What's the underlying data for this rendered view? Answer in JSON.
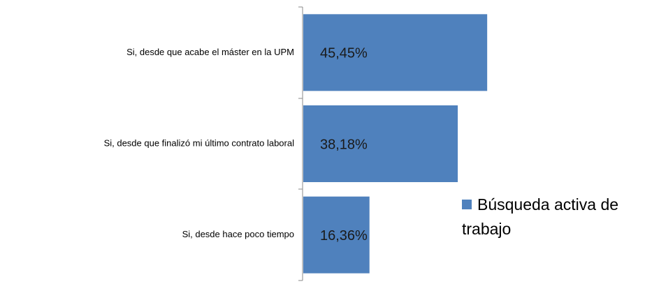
{
  "chart_data": {
    "type": "barh",
    "categories": [
      "Si, desde que acabe el máster  en la UPM",
      "Si, desde que finalizó mi último  contrato laboral",
      "Si, desde hace poco tiempo"
    ],
    "series": [
      {
        "name": "Búsqueda activa de trabajo",
        "color": "#4f81bd",
        "values": [
          45.45,
          38.18,
          16.36
        ],
        "value_labels": [
          "45,45%",
          "38,18%",
          "16,36%"
        ]
      }
    ],
    "legend": "right"
  }
}
